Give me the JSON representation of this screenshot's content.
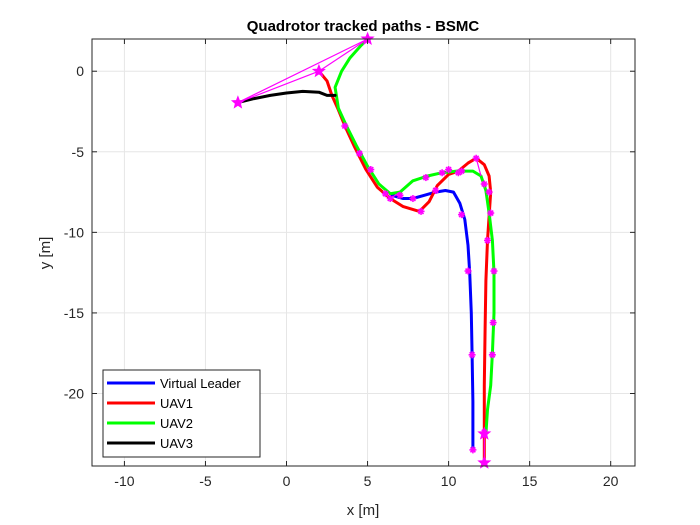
{
  "chart_data": {
    "type": "line",
    "title": "Quadrotor tracked paths - BSMC",
    "xlabel": "x [m]",
    "ylabel": "y [m]",
    "xlim": [
      -12,
      21.5
    ],
    "ylim": [
      -24.5,
      2
    ],
    "xticks": [
      -10,
      -5,
      0,
      5,
      10,
      15,
      20
    ],
    "yticks": [
      0,
      -5,
      -10,
      -15,
      -20
    ],
    "grid": true,
    "legend_position": "bottom-left",
    "series": [
      {
        "name": "Virtual Leader",
        "color": "#0000ff",
        "points": [
          [
            6.5,
            -7.7
          ],
          [
            7.2,
            -7.9
          ],
          [
            7.8,
            -7.9
          ],
          [
            8.5,
            -7.7
          ],
          [
            9.2,
            -7.5
          ],
          [
            9.8,
            -7.4
          ],
          [
            10.3,
            -7.5
          ],
          [
            10.7,
            -8.2
          ],
          [
            11.0,
            -9.2
          ],
          [
            11.2,
            -10.8
          ],
          [
            11.3,
            -12.5
          ],
          [
            11.4,
            -15.0
          ],
          [
            11.45,
            -17.6
          ],
          [
            11.5,
            -20.5
          ],
          [
            11.5,
            -23.5
          ]
        ]
      },
      {
        "name": "UAV1",
        "color": "#ff0000",
        "points": [
          [
            2.0,
            0.0
          ],
          [
            2.5,
            -0.6
          ],
          [
            2.8,
            -1.5
          ],
          [
            3.2,
            -2.4
          ],
          [
            3.6,
            -3.4
          ],
          [
            4.2,
            -4.7
          ],
          [
            4.9,
            -6.1
          ],
          [
            5.6,
            -7.2
          ],
          [
            6.4,
            -7.9
          ],
          [
            7.2,
            -8.4
          ],
          [
            8.2,
            -8.7
          ],
          [
            8.8,
            -8.1
          ],
          [
            9.3,
            -7.1
          ],
          [
            10.0,
            -6.4
          ],
          [
            10.6,
            -6.2
          ],
          [
            11.2,
            -5.7
          ],
          [
            11.7,
            -5.4
          ],
          [
            12.2,
            -5.8
          ],
          [
            12.5,
            -6.5
          ],
          [
            12.6,
            -7.5
          ],
          [
            12.5,
            -9.0
          ],
          [
            12.4,
            -10.5
          ],
          [
            12.3,
            -13.0
          ],
          [
            12.25,
            -16.0
          ],
          [
            12.2,
            -19.5
          ],
          [
            12.2,
            -22.5
          ],
          [
            12.2,
            -24.3
          ]
        ]
      },
      {
        "name": "UAV2",
        "color": "#00ff00",
        "points": [
          [
            5.0,
            2.0
          ],
          [
            4.6,
            1.6
          ],
          [
            3.9,
            0.8
          ],
          [
            3.4,
            0.0
          ],
          [
            3.0,
            -1.0
          ],
          [
            3.2,
            -2.3
          ],
          [
            3.7,
            -3.4
          ],
          [
            4.3,
            -4.6
          ],
          [
            5.0,
            -5.9
          ],
          [
            5.7,
            -7.0
          ],
          [
            6.4,
            -7.6
          ],
          [
            7.0,
            -7.5
          ],
          [
            7.8,
            -6.8
          ],
          [
            8.7,
            -6.5
          ],
          [
            9.6,
            -6.3
          ],
          [
            10.5,
            -6.2
          ],
          [
            11.5,
            -6.2
          ],
          [
            12.0,
            -6.5
          ],
          [
            12.3,
            -7.4
          ],
          [
            12.5,
            -8.8
          ],
          [
            12.7,
            -10.5
          ],
          [
            12.8,
            -12.5
          ],
          [
            12.8,
            -15.0
          ],
          [
            12.7,
            -17.5
          ],
          [
            12.6,
            -19.5
          ],
          [
            12.4,
            -21.0
          ],
          [
            12.3,
            -22.5
          ]
        ]
      },
      {
        "name": "UAV3",
        "color": "#000000",
        "points": [
          [
            -3.0,
            -1.95
          ],
          [
            -2.0,
            -1.7
          ],
          [
            -1.0,
            -1.5
          ],
          [
            0.0,
            -1.35
          ],
          [
            1.0,
            -1.25
          ],
          [
            2.0,
            -1.3
          ],
          [
            2.5,
            -1.5
          ],
          [
            3.0,
            -1.5
          ]
        ]
      }
    ],
    "formation_lines": [
      {
        "color": "#ff00ff",
        "points": [
          [
            -3.0,
            -1.95
          ],
          [
            5.0,
            2.0
          ]
        ]
      },
      {
        "color": "#ff00ff",
        "points": [
          [
            -3.0,
            -1.95
          ],
          [
            2.0,
            0.0
          ]
        ]
      },
      {
        "color": "#ff00ff",
        "points": [
          [
            2.0,
            0.0
          ],
          [
            5.0,
            2.0
          ]
        ]
      },
      {
        "color": "#ff00ff",
        "points": [
          [
            6.4,
            -7.9
          ],
          [
            7.0,
            -7.5
          ]
        ]
      },
      {
        "color": "#ff00ff",
        "points": [
          [
            11.7,
            -5.4
          ],
          [
            12.0,
            -6.5
          ]
        ]
      },
      {
        "color": "#ff00ff",
        "points": [
          [
            12.2,
            -24.3
          ],
          [
            12.2,
            -22.5
          ]
        ]
      }
    ],
    "markers": {
      "color": "#ff00ff",
      "big": [
        [
          -3.0,
          -1.95
        ],
        [
          2.0,
          0.0
        ],
        [
          5.0,
          2.0
        ],
        [
          12.2,
          -24.3
        ],
        [
          12.2,
          -22.5
        ]
      ],
      "small": [
        [
          3.6,
          -3.4
        ],
        [
          4.5,
          -5.1
        ],
        [
          5.2,
          -6.1
        ],
        [
          6.1,
          -7.6
        ],
        [
          6.4,
          -7.9
        ],
        [
          7.0,
          -7.7
        ],
        [
          7.8,
          -7.9
        ],
        [
          8.3,
          -8.7
        ],
        [
          8.6,
          -6.6
        ],
        [
          9.2,
          -7.4
        ],
        [
          9.6,
          -6.3
        ],
        [
          10.0,
          -6.1
        ],
        [
          10.6,
          -6.3
        ],
        [
          10.8,
          -6.2
        ],
        [
          10.8,
          -8.9
        ],
        [
          11.2,
          -12.4
        ],
        [
          11.45,
          -17.6
        ],
        [
          11.5,
          -23.5
        ],
        [
          11.7,
          -5.4
        ],
        [
          12.2,
          -7.0
        ],
        [
          12.5,
          -7.5
        ],
        [
          12.6,
          -8.8
        ],
        [
          12.4,
          -10.5
        ],
        [
          12.8,
          -12.4
        ],
        [
          12.75,
          -15.6
        ],
        [
          12.7,
          -17.6
        ],
        [
          12.2,
          -22.4
        ]
      ]
    }
  }
}
